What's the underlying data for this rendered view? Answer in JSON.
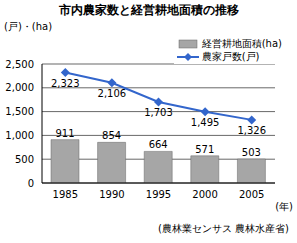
{
  "chart_data": {
    "type": "bar",
    "title": "市内農家数と経営耕地面積の推移",
    "y_label": "(戸)・(ha)",
    "x_label": "(年)",
    "source": "(農林業センサス 農林水産省)",
    "categories": [
      "1985",
      "1990",
      "1995",
      "2000",
      "2005"
    ],
    "ylim": [
      0,
      2500
    ],
    "yticks": [
      0,
      500,
      {
        "value": 1000,
        "label": "1,000"
      },
      {
        "value": 1500,
        "label": "1,500"
      },
      {
        "value": 2000,
        "label": "2,000"
      },
      {
        "value": 2500,
        "label": "2,500"
      }
    ],
    "grid": true,
    "legend": "upper right",
    "data_labels": true,
    "series": [
      {
        "name": "経営耕地面積(ha)",
        "type": "bar",
        "color": "#a6a6a6",
        "values": [
          911,
          854,
          664,
          571,
          503
        ]
      },
      {
        "name": "農家戸数(戸)",
        "type": "line",
        "color": "#3366cc",
        "marker": "diamond",
        "values": [
          2323,
          2106,
          1703,
          1495,
          1326
        ],
        "value_labels": [
          "2,323",
          "2,106",
          "1,703",
          "1,495",
          "1,326"
        ]
      }
    ]
  }
}
